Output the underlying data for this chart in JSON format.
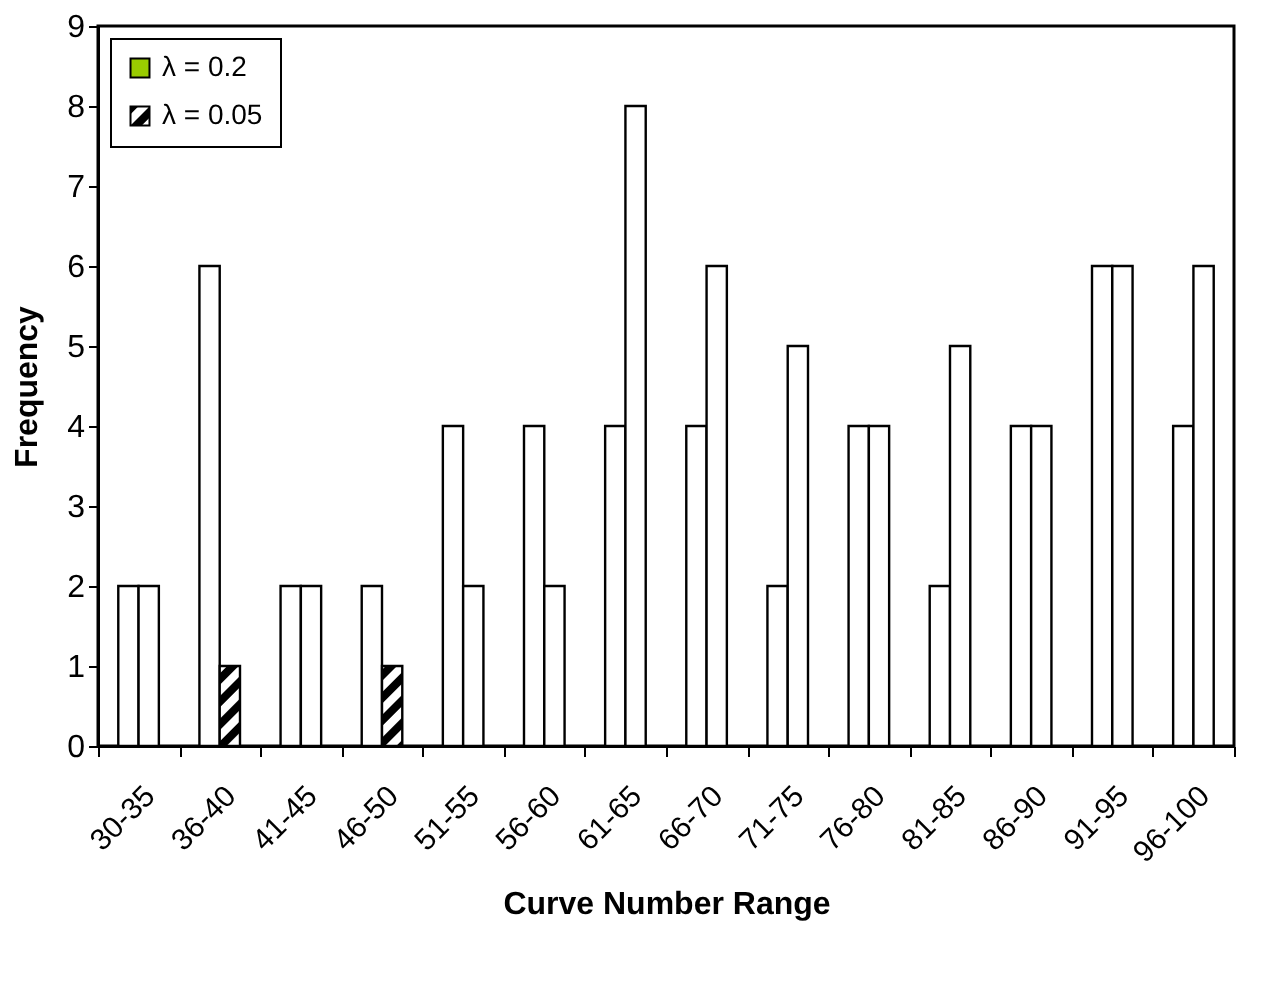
{
  "chart_data": {
    "type": "bar",
    "xlabel": "Curve Number Range",
    "ylabel": "Frequency",
    "categories": [
      "30-35",
      "36-40",
      "41-45",
      "46-50",
      "51-55",
      "56-60",
      "61-65",
      "66-70",
      "71-75",
      "76-80",
      "81-85",
      "86-90",
      "91-95",
      "96-100"
    ],
    "series": [
      {
        "color": "#ffffff",
        "values": [
          2,
          6,
          2,
          2,
          4,
          4,
          4,
          4,
          2,
          4,
          2,
          4,
          6,
          4
        ]
      },
      {
        "color": "#ffffff",
        "values": [
          2,
          null,
          2,
          null,
          2,
          2,
          8,
          6,
          5,
          4,
          5,
          4,
          6,
          6
        ]
      },
      {
        "name": "λ = 0.2",
        "color": "#99cc00",
        "values": [
          null,
          null,
          null,
          null,
          null,
          null,
          null,
          null,
          null,
          null,
          null,
          null,
          null,
          null
        ]
      },
      {
        "name": "λ = 0.05",
        "color": "#000000",
        "values": [
          null,
          1,
          null,
          1,
          null,
          null,
          null,
          null,
          null,
          null,
          null,
          null,
          null,
          null
        ]
      }
    ],
    "ylim": [
      0,
      9
    ],
    "yticks": [
      0,
      1,
      2,
      3,
      4,
      5,
      6,
      7,
      8,
      9
    ],
    "grid": false,
    "legend": "top left"
  }
}
